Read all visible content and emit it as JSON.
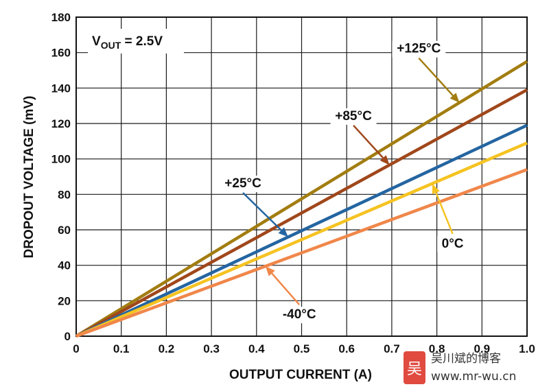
{
  "chart_data": {
    "type": "line",
    "title": "",
    "xlabel": "OUTPUT CURRENT (A)",
    "ylabel": "DROPOUT VOLTAGE (mV)",
    "xlim": [
      0,
      1.0
    ],
    "ylim": [
      0,
      180
    ],
    "x_ticks": [
      "0",
      "0.1",
      "0.2",
      "0.3",
      "0.4",
      "0.5",
      "0.6",
      "0.7",
      "0.8",
      "0.9",
      "1.0"
    ],
    "y_ticks": [
      "0",
      "20",
      "40",
      "60",
      "80",
      "100",
      "120",
      "140",
      "160",
      "180"
    ],
    "grid": true,
    "condition": {
      "main": "V",
      "sub": "OUT",
      "rest": " = 2.5V"
    },
    "series": [
      {
        "name": "+125°C",
        "color": "#a27d10",
        "x": [
          0,
          1.0
        ],
        "y": [
          0,
          155
        ]
      },
      {
        "name": "+85°C",
        "color": "#a0471b",
        "x": [
          0,
          1.0
        ],
        "y": [
          0,
          139
        ]
      },
      {
        "name": "+25°C",
        "color": "#2465a1",
        "x": [
          0,
          1.0
        ],
        "y": [
          0,
          119
        ]
      },
      {
        "name": "0°C",
        "color": "#f5c322",
        "x": [
          0,
          1.0
        ],
        "y": [
          0,
          109
        ]
      },
      {
        "name": "-40°C",
        "color": "#f0874a",
        "x": [
          0,
          1.0
        ],
        "y": [
          0,
          94
        ]
      }
    ],
    "annotations": [
      {
        "text": "+125°C",
        "series": 0,
        "text_x": 0.76,
        "text_y": 160,
        "point_x": 0.85,
        "point_y": 131.75
      },
      {
        "text": "+85°C",
        "series": 1,
        "text_x": 0.615,
        "text_y": 122,
        "point_x": 0.695,
        "point_y": 96.6
      },
      {
        "text": "+25°C",
        "series": 2,
        "text_x": 0.37,
        "text_y": 84,
        "point_x": 0.47,
        "point_y": 56
      },
      {
        "text": "0°C",
        "series": 3,
        "text_x": 0.835,
        "text_y": 50,
        "point_x": 0.79,
        "point_y": 86
      },
      {
        "text": "-40°C",
        "series": 4,
        "text_x": 0.495,
        "text_y": 10,
        "point_x": 0.42,
        "point_y": 39.5
      }
    ]
  },
  "watermark": {
    "logo_char": "吴",
    "site_name": "吴川斌的博客",
    "url": "www.mr-wu.cn"
  }
}
